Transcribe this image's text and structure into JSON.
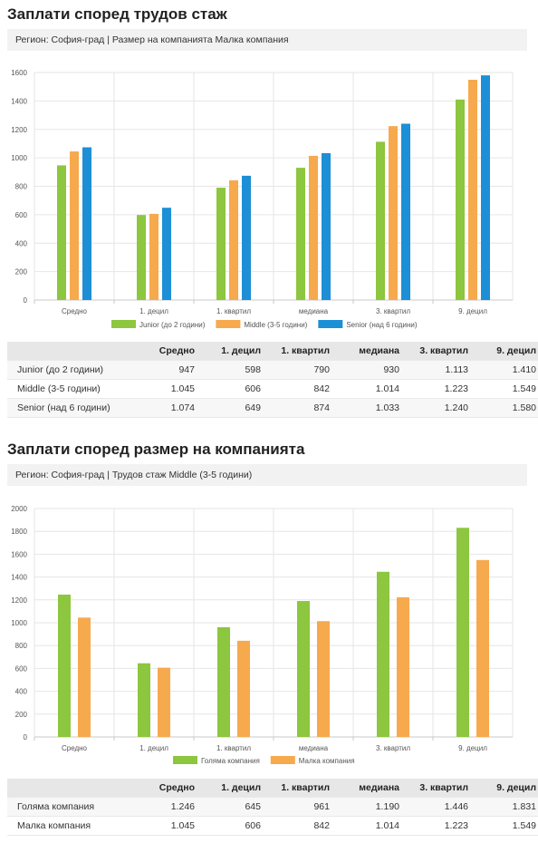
{
  "sections": [
    {
      "title": "Заплати според трудов стаж",
      "info": "Регион: София-град | Размер на компанията Малка компания",
      "table": {
        "headers": [
          "",
          "Средно",
          "1. децил",
          "1. квартил",
          "медиана",
          "3. квартил",
          "9. децил"
        ],
        "rows": [
          {
            "label": "Junior (до 2 години)",
            "cells": [
              "947",
              "598",
              "790",
              "930",
              "1.113",
              "1.410"
            ]
          },
          {
            "label": "Middle (3-5 години)",
            "cells": [
              "1.045",
              "606",
              "842",
              "1.014",
              "1.223",
              "1.549"
            ]
          },
          {
            "label": "Senior (над 6 години)",
            "cells": [
              "1.074",
              "649",
              "874",
              "1.033",
              "1.240",
              "1.580"
            ]
          }
        ]
      }
    },
    {
      "title": "Заплати според размер на компанията",
      "info": "Регион: София-град | Трудов стаж Middle (3-5 години)",
      "table": {
        "headers": [
          "",
          "Средно",
          "1. децил",
          "1. квартил",
          "медиана",
          "3. квартил",
          "9. децил"
        ],
        "rows": [
          {
            "label": "Голяма компания",
            "cells": [
              "1.246",
              "645",
              "961",
              "1.190",
              "1.446",
              "1.831"
            ]
          },
          {
            "label": "Малка компания",
            "cells": [
              "1.045",
              "606",
              "842",
              "1.014",
              "1.223",
              "1.549"
            ]
          }
        ]
      }
    }
  ],
  "chart_data": [
    {
      "type": "bar",
      "categories": [
        "Средно",
        "1. децил",
        "1. квартил",
        "медиана",
        "3. квартил",
        "9. децил"
      ],
      "series": [
        {
          "name": "Junior (до 2 години)",
          "values": [
            947,
            598,
            790,
            930,
            1113,
            1410
          ],
          "color": "#8dc63f"
        },
        {
          "name": "Middle (3-5 години)",
          "values": [
            1045,
            606,
            842,
            1014,
            1223,
            1549
          ],
          "color": "#f7a94d"
        },
        {
          "name": "Senior (над 6 години)",
          "values": [
            1074,
            649,
            874,
            1033,
            1240,
            1580
          ],
          "color": "#1c8fd6"
        }
      ],
      "ylim": [
        0,
        1600
      ],
      "yticks": [
        0,
        200,
        400,
        600,
        800,
        1000,
        1200,
        1400,
        1600
      ],
      "grid": true,
      "legend": "bottom"
    },
    {
      "type": "bar",
      "categories": [
        "Средно",
        "1. децил",
        "1. квартил",
        "медиана",
        "3. квартил",
        "9. децил"
      ],
      "series": [
        {
          "name": "Голяма компания",
          "values": [
            1246,
            645,
            961,
            1190,
            1446,
            1831
          ],
          "color": "#8dc63f"
        },
        {
          "name": "Малка компания",
          "values": [
            1045,
            606,
            842,
            1014,
            1223,
            1549
          ],
          "color": "#f7a94d"
        }
      ],
      "ylim": [
        0,
        2000
      ],
      "yticks": [
        0,
        200,
        400,
        600,
        800,
        1000,
        1200,
        1400,
        1600,
        1800,
        2000
      ],
      "grid": true,
      "legend": "bottom"
    }
  ]
}
